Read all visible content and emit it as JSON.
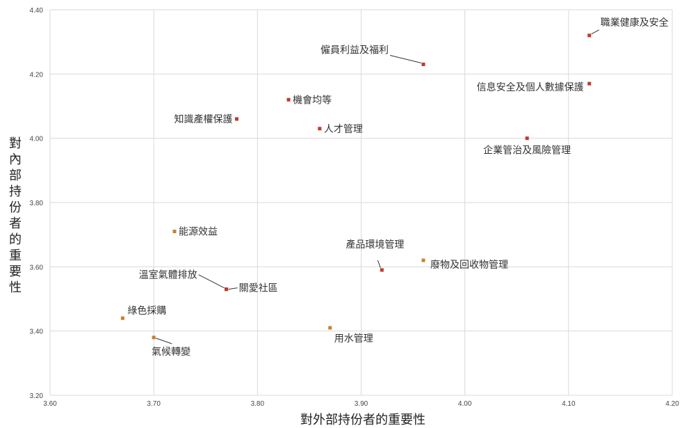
{
  "chart_data": {
    "type": "scatter",
    "title": "",
    "xlabel": "對外部持份者的重要性",
    "ylabel": "對內部持份者的重要性",
    "xlim": [
      3.6,
      4.2
    ],
    "ylim": [
      3.2,
      4.4
    ],
    "xticks": [
      "3.60",
      "3.70",
      "3.80",
      "3.90",
      "4.00",
      "4.10",
      "4.20"
    ],
    "yticks": [
      "3.20",
      "3.40",
      "3.60",
      "3.80",
      "4.00",
      "4.20",
      "4.40"
    ],
    "grid": true,
    "legend": "none",
    "colors": {
      "red": "#c0392b",
      "orange": "#c8802e",
      "grid": "#d9d9d9",
      "leader": "#333333"
    },
    "points": [
      {
        "label": "職業健康及安全",
        "x": 4.12,
        "y": 4.32,
        "color": "red"
      },
      {
        "label": "僱員利益及福利",
        "x": 3.96,
        "y": 4.23,
        "color": "red"
      },
      {
        "label": "信息安全及個人數據保護",
        "x": 4.12,
        "y": 4.17,
        "color": "red"
      },
      {
        "label": "機會均等",
        "x": 3.83,
        "y": 4.12,
        "color": "red"
      },
      {
        "label": "知識產權保護",
        "x": 3.78,
        "y": 4.06,
        "color": "red"
      },
      {
        "label": "人才管理",
        "x": 3.86,
        "y": 4.03,
        "color": "red"
      },
      {
        "label": "企業管治及風險管理",
        "x": 4.06,
        "y": 4.0,
        "color": "red"
      },
      {
        "label": "能源效益",
        "x": 3.72,
        "y": 3.71,
        "color": "orange"
      },
      {
        "label": "產品環境管理",
        "x": 3.92,
        "y": 3.59,
        "color": "red"
      },
      {
        "label": "廢物及回收物管理",
        "x": 3.96,
        "y": 3.62,
        "color": "orange"
      },
      {
        "label": "溫室氣體排放",
        "x": 3.77,
        "y": 3.53,
        "color": "red"
      },
      {
        "label": "關愛社區",
        "x": 3.77,
        "y": 3.53,
        "color": "red"
      },
      {
        "label": "綠色採購",
        "x": 3.67,
        "y": 3.44,
        "color": "orange"
      },
      {
        "label": "用水管理",
        "x": 3.87,
        "y": 3.41,
        "color": "orange"
      },
      {
        "label": "氣候轉變",
        "x": 3.7,
        "y": 3.38,
        "color": "orange"
      }
    ]
  }
}
